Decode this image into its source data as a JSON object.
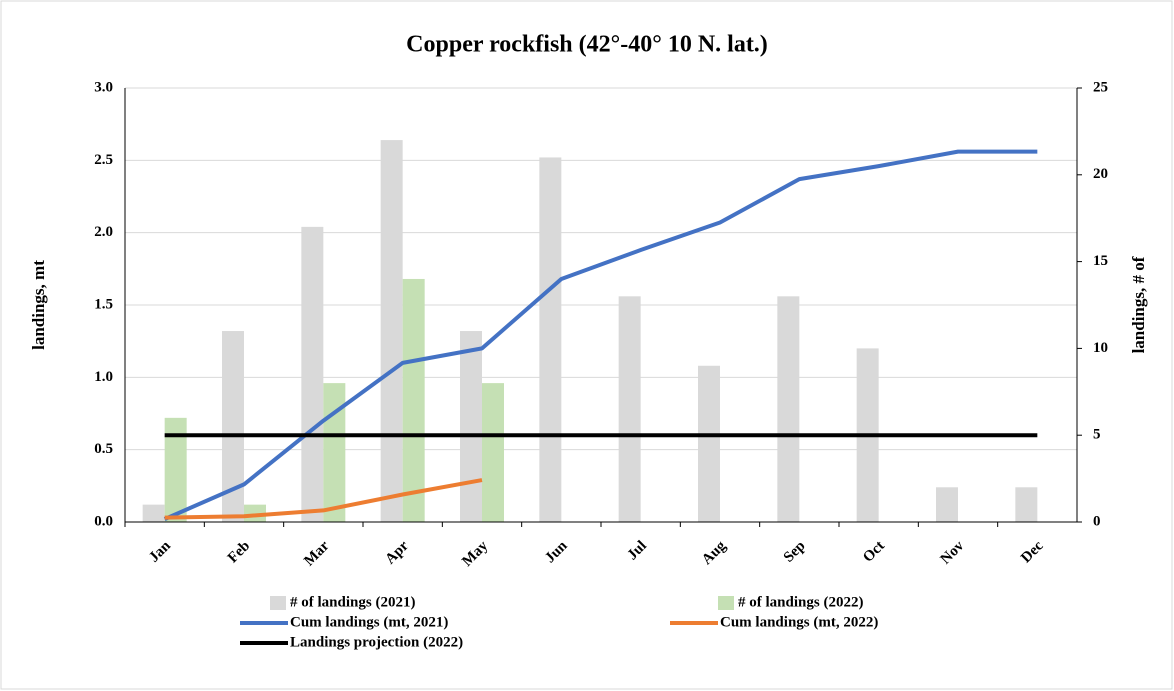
{
  "chart_data": {
    "type": "bar",
    "title": "Copper rockfish  (42°-40° 10 N. lat.)",
    "y_label": "landings, mt",
    "y2_label": "landings, # of",
    "categories": [
      "Jan",
      "Feb",
      "Mar",
      "Apr",
      "May",
      "Jun",
      "Jul",
      "Aug",
      "Sep",
      "Oct",
      "Nov",
      "Dec"
    ],
    "series": [
      {
        "name": "# of landings (2021)",
        "type": "bar",
        "axis": "y2",
        "color": "#d9d9d9",
        "values": [
          1,
          11,
          17,
          22,
          11,
          21,
          13,
          9,
          13,
          10,
          2,
          2
        ]
      },
      {
        "name": "# of landings (2022)",
        "type": "bar",
        "axis": "y2",
        "color": "#c5e0b4",
        "values": [
          6,
          1,
          8,
          14,
          8,
          null,
          null,
          null,
          null,
          null,
          null,
          null
        ]
      },
      {
        "name": "Cum landings (mt, 2021)",
        "type": "line",
        "axis": "y",
        "color": "#4472c4",
        "values": [
          0.02,
          0.26,
          0.7,
          1.1,
          1.2,
          1.68,
          1.88,
          2.07,
          2.37,
          2.46,
          2.56,
          2.56
        ]
      },
      {
        "name": "Cum landings (mt, 2022)",
        "type": "line",
        "axis": "y",
        "color": "#ed7d31",
        "values": [
          0.03,
          0.04,
          0.08,
          0.19,
          0.29,
          null,
          null,
          null,
          null,
          null,
          null,
          null
        ]
      },
      {
        "name": "Landings projection (2022)",
        "type": "line",
        "axis": "y",
        "color": "#000000",
        "values": [
          0.6,
          0.6,
          0.6,
          0.6,
          0.6,
          0.6,
          0.6,
          0.6,
          0.6,
          0.6,
          0.6,
          0.6
        ]
      }
    ],
    "ylim": [
      0,
      3
    ],
    "yticks": [
      {
        "value": 0,
        "label": "0.0"
      },
      0.5,
      {
        "value": 1,
        "label": "1.0"
      },
      1.5,
      {
        "value": 2,
        "label": "2.0"
      },
      2.5,
      {
        "value": 3,
        "label": "3.0"
      }
    ],
    "y2lim": [
      0,
      25
    ],
    "y2ticks": [
      0,
      5,
      10,
      15,
      20,
      25
    ],
    "grid": true,
    "legend": "bottom"
  }
}
